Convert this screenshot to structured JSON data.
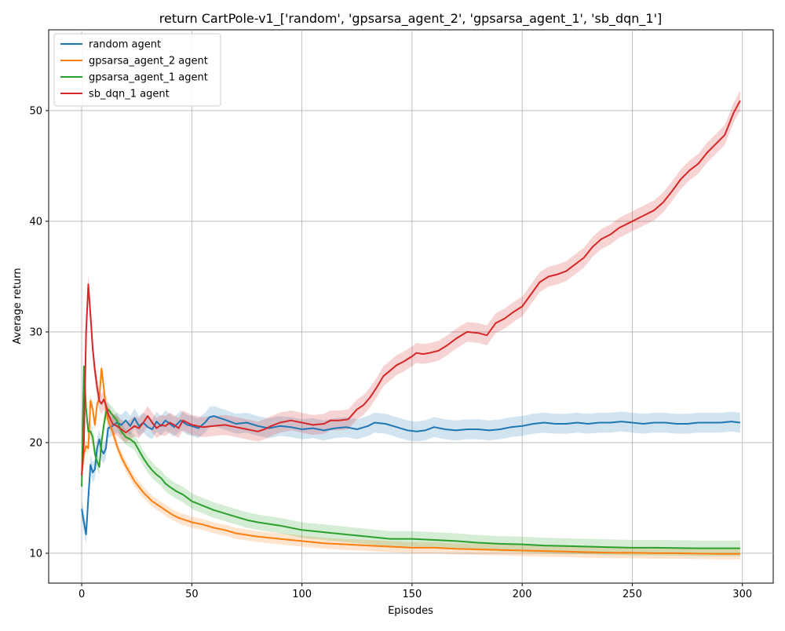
{
  "chart_data": {
    "type": "line",
    "title": "return CartPole-v1_['random', 'gpsarsa_agent_2', 'gpsarsa_agent_1', 'sb_dqn_1']",
    "xlabel": "Episodes",
    "ylabel": "Average return",
    "xlim": [
      -15,
      314
    ],
    "ylim": [
      7.3,
      57.3
    ],
    "xticks": [
      0,
      50,
      100,
      150,
      200,
      250,
      300
    ],
    "yticks": [
      10,
      20,
      30,
      40,
      50
    ],
    "grid": true,
    "legend_position": "top-left",
    "series": [
      {
        "name": "random agent",
        "color": "#1f77b4",
        "band": 0.9,
        "points": [
          [
            0,
            14.0
          ],
          [
            1,
            12.8
          ],
          [
            2,
            11.7
          ],
          [
            3,
            15.0
          ],
          [
            4,
            18.0
          ],
          [
            5,
            17.3
          ],
          [
            6,
            17.6
          ],
          [
            7,
            19.5
          ],
          [
            8,
            20.3
          ],
          [
            9,
            19.3
          ],
          [
            10,
            19.0
          ],
          [
            11,
            19.5
          ],
          [
            12,
            21.3
          ],
          [
            14,
            21.5
          ],
          [
            16,
            21.8
          ],
          [
            18,
            21.6
          ],
          [
            20,
            22.0
          ],
          [
            22,
            21.5
          ],
          [
            24,
            22.2
          ],
          [
            26,
            21.5
          ],
          [
            28,
            21.8
          ],
          [
            30,
            21.4
          ],
          [
            32,
            21.2
          ],
          [
            34,
            21.9
          ],
          [
            36,
            21.5
          ],
          [
            38,
            22.0
          ],
          [
            40,
            21.7
          ],
          [
            42,
            21.4
          ],
          [
            45,
            22.0
          ],
          [
            48,
            21.6
          ],
          [
            50,
            21.5
          ],
          [
            53,
            21.3
          ],
          [
            56,
            21.8
          ],
          [
            58,
            22.3
          ],
          [
            60,
            22.4
          ],
          [
            63,
            22.2
          ],
          [
            66,
            22.0
          ],
          [
            70,
            21.7
          ],
          [
            75,
            21.8
          ],
          [
            80,
            21.5
          ],
          [
            85,
            21.3
          ],
          [
            90,
            21.5
          ],
          [
            95,
            21.4
          ],
          [
            100,
            21.2
          ],
          [
            105,
            21.3
          ],
          [
            110,
            21.1
          ],
          [
            115,
            21.3
          ],
          [
            120,
            21.4
          ],
          [
            125,
            21.2
          ],
          [
            130,
            21.5
          ],
          [
            133,
            21.8
          ],
          [
            138,
            21.7
          ],
          [
            143,
            21.4
          ],
          [
            148,
            21.1
          ],
          [
            152,
            21.0
          ],
          [
            156,
            21.1
          ],
          [
            160,
            21.4
          ],
          [
            165,
            21.2
          ],
          [
            170,
            21.1
          ],
          [
            175,
            21.2
          ],
          [
            180,
            21.2
          ],
          [
            185,
            21.1
          ],
          [
            190,
            21.2
          ],
          [
            195,
            21.4
          ],
          [
            200,
            21.5
          ],
          [
            205,
            21.7
          ],
          [
            210,
            21.8
          ],
          [
            215,
            21.7
          ],
          [
            220,
            21.7
          ],
          [
            225,
            21.8
          ],
          [
            230,
            21.7
          ],
          [
            235,
            21.8
          ],
          [
            240,
            21.8
          ],
          [
            245,
            21.9
          ],
          [
            250,
            21.8
          ],
          [
            255,
            21.7
          ],
          [
            260,
            21.8
          ],
          [
            265,
            21.8
          ],
          [
            270,
            21.7
          ],
          [
            275,
            21.7
          ],
          [
            280,
            21.8
          ],
          [
            285,
            21.8
          ],
          [
            290,
            21.8
          ],
          [
            295,
            21.9
          ],
          [
            299,
            21.8
          ]
        ]
      },
      {
        "name": "gpsarsa_agent_2 agent",
        "color": "#ff7f0e",
        "band": 0.5,
        "points": [
          [
            0,
            17.0
          ],
          [
            1,
            19.0
          ],
          [
            2,
            19.7
          ],
          [
            3,
            19.5
          ],
          [
            4,
            23.8
          ],
          [
            5,
            23.0
          ],
          [
            6,
            21.6
          ],
          [
            7,
            23.5
          ],
          [
            8,
            24.0
          ],
          [
            9,
            26.7
          ],
          [
            10,
            25.0
          ],
          [
            11,
            23.0
          ],
          [
            12,
            22.0
          ],
          [
            14,
            21.0
          ],
          [
            16,
            19.7
          ],
          [
            18,
            18.7
          ],
          [
            20,
            17.9
          ],
          [
            22,
            17.2
          ],
          [
            24,
            16.5
          ],
          [
            26,
            16.0
          ],
          [
            28,
            15.5
          ],
          [
            30,
            15.1
          ],
          [
            32,
            14.7
          ],
          [
            35,
            14.3
          ],
          [
            38,
            13.9
          ],
          [
            41,
            13.5
          ],
          [
            44,
            13.2
          ],
          [
            47,
            13.0
          ],
          [
            50,
            12.8
          ],
          [
            55,
            12.6
          ],
          [
            60,
            12.3
          ],
          [
            65,
            12.1
          ],
          [
            70,
            11.8
          ],
          [
            80,
            11.5
          ],
          [
            90,
            11.3
          ],
          [
            100,
            11.1
          ],
          [
            110,
            10.9
          ],
          [
            120,
            10.8
          ],
          [
            130,
            10.7
          ],
          [
            140,
            10.6
          ],
          [
            150,
            10.5
          ],
          [
            160,
            10.5
          ],
          [
            170,
            10.4
          ],
          [
            180,
            10.35
          ],
          [
            190,
            10.3
          ],
          [
            200,
            10.25
          ],
          [
            210,
            10.2
          ],
          [
            220,
            10.15
          ],
          [
            230,
            10.1
          ],
          [
            240,
            10.05
          ],
          [
            250,
            10.05
          ],
          [
            260,
            10.0
          ],
          [
            270,
            10.0
          ],
          [
            280,
            9.97
          ],
          [
            290,
            9.95
          ],
          [
            299,
            9.95
          ]
        ]
      },
      {
        "name": "gpsarsa_agent_1 agent",
        "color": "#2ca02c",
        "band": 0.7,
        "points": [
          [
            0,
            16.0
          ],
          [
            1,
            26.9
          ],
          [
            2,
            23.0
          ],
          [
            3,
            21.0
          ],
          [
            4,
            21.0
          ],
          [
            5,
            20.5
          ],
          [
            6,
            19.0
          ],
          [
            7,
            18.3
          ],
          [
            8,
            17.8
          ],
          [
            9,
            20.0
          ],
          [
            10,
            21.5
          ],
          [
            11,
            22.7
          ],
          [
            12,
            23.0
          ],
          [
            14,
            22.5
          ],
          [
            16,
            22.0
          ],
          [
            18,
            21.0
          ],
          [
            20,
            20.5
          ],
          [
            22,
            20.3
          ],
          [
            24,
            20.0
          ],
          [
            26,
            19.3
          ],
          [
            28,
            18.6
          ],
          [
            30,
            18.0
          ],
          [
            32,
            17.5
          ],
          [
            34,
            17.1
          ],
          [
            36,
            16.8
          ],
          [
            38,
            16.3
          ],
          [
            40,
            16.0
          ],
          [
            43,
            15.6
          ],
          [
            46,
            15.3
          ],
          [
            50,
            14.7
          ],
          [
            55,
            14.3
          ],
          [
            60,
            13.9
          ],
          [
            65,
            13.6
          ],
          [
            70,
            13.3
          ],
          [
            75,
            13.0
          ],
          [
            80,
            12.8
          ],
          [
            90,
            12.5
          ],
          [
            100,
            12.1
          ],
          [
            110,
            11.9
          ],
          [
            120,
            11.7
          ],
          [
            130,
            11.5
          ],
          [
            140,
            11.3
          ],
          [
            150,
            11.3
          ],
          [
            160,
            11.2
          ],
          [
            170,
            11.1
          ],
          [
            180,
            10.95
          ],
          [
            190,
            10.85
          ],
          [
            200,
            10.8
          ],
          [
            210,
            10.7
          ],
          [
            220,
            10.65
          ],
          [
            230,
            10.6
          ],
          [
            240,
            10.55
          ],
          [
            250,
            10.5
          ],
          [
            260,
            10.5
          ],
          [
            270,
            10.48
          ],
          [
            280,
            10.45
          ],
          [
            290,
            10.45
          ],
          [
            299,
            10.45
          ]
        ]
      },
      {
        "name": "sb_dqn_1 agent",
        "color": "#d62728",
        "band": 0.9,
        "points": [
          [
            0,
            17.0
          ],
          [
            1,
            20.0
          ],
          [
            2,
            30.0
          ],
          [
            3,
            34.3
          ],
          [
            4,
            31.5
          ],
          [
            5,
            28.5
          ],
          [
            6,
            26.5
          ],
          [
            7,
            25.0
          ],
          [
            8,
            23.8
          ],
          [
            9,
            23.5
          ],
          [
            10,
            23.9
          ],
          [
            11,
            23.4
          ],
          [
            12,
            22.6
          ],
          [
            14,
            21.7
          ],
          [
            16,
            21.5
          ],
          [
            18,
            21.2
          ],
          [
            20,
            20.9
          ],
          [
            22,
            21.2
          ],
          [
            24,
            21.5
          ],
          [
            26,
            21.3
          ],
          [
            28,
            21.8
          ],
          [
            30,
            22.4
          ],
          [
            32,
            21.8
          ],
          [
            34,
            21.3
          ],
          [
            36,
            21.6
          ],
          [
            38,
            21.5
          ],
          [
            40,
            21.8
          ],
          [
            42,
            21.6
          ],
          [
            44,
            21.3
          ],
          [
            46,
            22.0
          ],
          [
            48,
            21.8
          ],
          [
            50,
            21.6
          ],
          [
            55,
            21.4
          ],
          [
            60,
            21.5
          ],
          [
            65,
            21.6
          ],
          [
            70,
            21.4
          ],
          [
            75,
            21.2
          ],
          [
            80,
            21.0
          ],
          [
            83,
            21.2
          ],
          [
            86,
            21.5
          ],
          [
            90,
            21.8
          ],
          [
            95,
            22.0
          ],
          [
            100,
            21.8
          ],
          [
            105,
            21.6
          ],
          [
            110,
            21.7
          ],
          [
            113,
            22.0
          ],
          [
            117,
            22.0
          ],
          [
            121,
            22.1
          ],
          [
            125,
            23.0
          ],
          [
            128,
            23.4
          ],
          [
            131,
            24.1
          ],
          [
            134,
            25.0
          ],
          [
            137,
            26.0
          ],
          [
            140,
            26.5
          ],
          [
            143,
            27.0
          ],
          [
            146,
            27.3
          ],
          [
            150,
            27.8
          ],
          [
            152,
            28.1
          ],
          [
            155,
            28.0
          ],
          [
            158,
            28.1
          ],
          [
            162,
            28.3
          ],
          [
            166,
            28.8
          ],
          [
            170,
            29.4
          ],
          [
            175,
            30.0
          ],
          [
            180,
            29.9
          ],
          [
            184,
            29.7
          ],
          [
            188,
            30.8
          ],
          [
            192,
            31.2
          ],
          [
            196,
            31.8
          ],
          [
            200,
            32.3
          ],
          [
            204,
            33.4
          ],
          [
            208,
            34.5
          ],
          [
            212,
            35.0
          ],
          [
            216,
            35.2
          ],
          [
            220,
            35.5
          ],
          [
            224,
            36.1
          ],
          [
            228,
            36.7
          ],
          [
            232,
            37.7
          ],
          [
            236,
            38.4
          ],
          [
            240,
            38.8
          ],
          [
            244,
            39.4
          ],
          [
            248,
            39.8
          ],
          [
            252,
            40.2
          ],
          [
            256,
            40.6
          ],
          [
            260,
            41.0
          ],
          [
            264,
            41.7
          ],
          [
            268,
            42.7
          ],
          [
            272,
            43.8
          ],
          [
            276,
            44.6
          ],
          [
            280,
            45.2
          ],
          [
            284,
            46.2
          ],
          [
            288,
            47.0
          ],
          [
            292,
            47.8
          ],
          [
            296,
            49.8
          ],
          [
            299,
            50.9
          ]
        ]
      }
    ]
  }
}
